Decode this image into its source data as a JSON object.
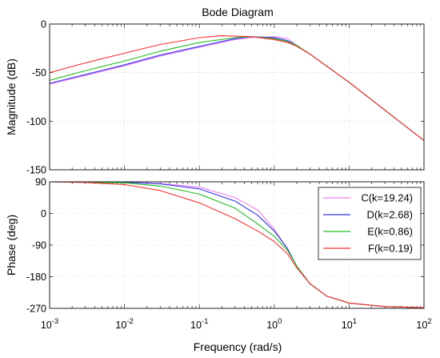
{
  "chart_data": {
    "type": "line",
    "title": "Bode Diagram",
    "xlabel": "Frequency  (rad/s)",
    "x_scale": "log",
    "xlim": [
      0.001,
      100
    ],
    "x_ticks": [
      {
        "value": 0.001,
        "base": "10",
        "exp": "-3"
      },
      {
        "value": 0.01,
        "base": "10",
        "exp": "-2"
      },
      {
        "value": 0.1,
        "base": "10",
        "exp": "-1"
      },
      {
        "value": 1,
        "base": "10",
        "exp": "0"
      },
      {
        "value": 10,
        "base": "10",
        "exp": "1"
      },
      {
        "value": 100,
        "base": "10",
        "exp": "2"
      }
    ],
    "legend": {
      "placement": "inside-right, lower panel"
    },
    "series": [
      {
        "name": "C(k=19.24)",
        "color": "#ee82ee",
        "k": 19.24
      },
      {
        "name": "D(k=2.68)",
        "color": "#3333ee",
        "k": 2.68
      },
      {
        "name": "E(k=0.86)",
        "color": "#22bb22",
        "k": 0.86
      },
      {
        "name": "F(k=0.19)",
        "color": "#ff3030",
        "k": 0.19
      }
    ],
    "panels": [
      {
        "ylabel": "Magnitude (dB)",
        "ylim": [
          -150,
          0
        ],
        "yticks": [
          0,
          -50,
          -100,
          -150
        ],
        "ytick_labels": [
          "0",
          "-50",
          "-100",
          "-150"
        ],
        "series_data": [
          {
            "x": [
              0.001,
              0.003,
              0.01,
              0.03,
              0.1,
              0.3,
              0.5,
              1,
              1.5,
              2,
              3,
              10,
              100
            ],
            "y": [
              -62,
              -53,
              -43,
              -33,
              -24,
              -16,
              -14,
              -13,
              -15,
              -22,
              -31,
              -60,
              -120
            ]
          },
          {
            "x": [
              0.001,
              0.003,
              0.01,
              0.03,
              0.1,
              0.3,
              0.5,
              1,
              1.5,
              2,
              3,
              10,
              100
            ],
            "y": [
              -61,
              -52,
              -42,
              -32,
              -23,
              -15,
              -13,
              -14,
              -17,
              -22,
              -31,
              -60,
              -120
            ]
          },
          {
            "x": [
              0.001,
              0.003,
              0.01,
              0.03,
              0.1,
              0.3,
              0.5,
              1,
              1.5,
              2,
              3,
              10,
              100
            ],
            "y": [
              -58,
              -48,
              -38,
              -28,
              -19,
              -14,
              -13,
              -15,
              -18,
              -22,
              -31,
              -60,
              -120
            ]
          },
          {
            "x": [
              0.001,
              0.003,
              0.01,
              0.03,
              0.1,
              0.2,
              0.5,
              1,
              1.5,
              2,
              3,
              10,
              100
            ],
            "y": [
              -50,
              -40,
              -30,
              -21,
              -14,
              -12,
              -13,
              -16,
              -19,
              -23,
              -31,
              -60,
              -120
            ]
          }
        ]
      },
      {
        "ylabel": "Phase (deg)",
        "ylim": [
          -270,
          90
        ],
        "yticks": [
          90,
          0,
          -90,
          -180,
          -270
        ],
        "ytick_labels": [
          "90",
          "0",
          "-90",
          "-180",
          "-270"
        ],
        "series_data": [
          {
            "x": [
              0.001,
              0.01,
              0.03,
              0.1,
              0.3,
              0.6,
              1,
              1.5,
              2,
              3,
              5,
              10,
              30,
              100
            ],
            "y": [
              90,
              89,
              85,
              75,
              45,
              10,
              -45,
              -100,
              -150,
              -200,
              -235,
              -255,
              -265,
              -268
            ]
          },
          {
            "x": [
              0.001,
              0.01,
              0.03,
              0.1,
              0.3,
              0.6,
              1,
              1.5,
              2,
              3,
              5,
              10,
              30,
              100
            ],
            "y": [
              90,
              89,
              84,
              70,
              35,
              -5,
              -50,
              -100,
              -150,
              -200,
              -235,
              -255,
              -265,
              -268
            ]
          },
          {
            "x": [
              0.001,
              0.01,
              0.03,
              0.1,
              0.3,
              0.6,
              1,
              1.5,
              2,
              3,
              5,
              10,
              30,
              100
            ],
            "y": [
              90,
              87,
              78,
              55,
              15,
              -30,
              -65,
              -105,
              -150,
              -200,
              -235,
              -255,
              -265,
              -268
            ]
          },
          {
            "x": [
              0.001,
              0.003,
              0.01,
              0.03,
              0.1,
              0.3,
              0.6,
              1,
              1.5,
              2,
              3,
              5,
              10,
              30,
              100
            ],
            "y": [
              90,
              88,
              82,
              65,
              30,
              -15,
              -50,
              -80,
              -115,
              -155,
              -200,
              -235,
              -255,
              -265,
              -268
            ]
          }
        ]
      }
    ]
  }
}
